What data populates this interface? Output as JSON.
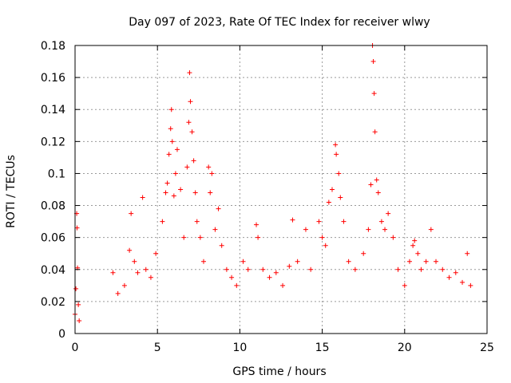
{
  "chart_data": {
    "type": "scatter",
    "title": "Day 097 of 2023, Rate Of TEC Index for receiver wlwy",
    "xlabel": "GPS time / hours",
    "ylabel": "ROTI / TECUs",
    "xlim": [
      0,
      25
    ],
    "ylim": [
      0,
      0.18
    ],
    "xticks": [
      "0",
      "5",
      "10",
      "15",
      "20",
      "25"
    ],
    "yticks": [
      "0",
      "0.02",
      "0.04",
      "0.06",
      "0.08",
      "0.1",
      "0.12",
      "0.14",
      "0.16",
      "0.18"
    ],
    "grid": true,
    "marker": "+",
    "series_color": "#ff0000",
    "series": [
      {
        "name": "ROTI",
        "points": [
          [
            0.0,
            0.012
          ],
          [
            0.05,
            0.028
          ],
          [
            0.1,
            0.075
          ],
          [
            0.12,
            0.066
          ],
          [
            0.15,
            0.041
          ],
          [
            0.2,
            0.018
          ],
          [
            0.25,
            0.008
          ],
          [
            2.3,
            0.038
          ],
          [
            2.6,
            0.025
          ],
          [
            3.0,
            0.03
          ],
          [
            3.3,
            0.052
          ],
          [
            3.4,
            0.075
          ],
          [
            3.6,
            0.045
          ],
          [
            3.8,
            0.038
          ],
          [
            4.1,
            0.085
          ],
          [
            4.3,
            0.04
          ],
          [
            4.6,
            0.035
          ],
          [
            4.9,
            0.05
          ],
          [
            5.3,
            0.07
          ],
          [
            5.5,
            0.088
          ],
          [
            5.6,
            0.094
          ],
          [
            5.7,
            0.112
          ],
          [
            5.8,
            0.128
          ],
          [
            5.85,
            0.14
          ],
          [
            5.9,
            0.12
          ],
          [
            6.0,
            0.086
          ],
          [
            6.1,
            0.1
          ],
          [
            6.2,
            0.115
          ],
          [
            6.4,
            0.09
          ],
          [
            6.6,
            0.06
          ],
          [
            6.8,
            0.104
          ],
          [
            6.9,
            0.132
          ],
          [
            6.95,
            0.163
          ],
          [
            7.0,
            0.145
          ],
          [
            7.1,
            0.126
          ],
          [
            7.2,
            0.108
          ],
          [
            7.3,
            0.088
          ],
          [
            7.4,
            0.07
          ],
          [
            7.6,
            0.06
          ],
          [
            7.8,
            0.045
          ],
          [
            8.1,
            0.104
          ],
          [
            8.2,
            0.088
          ],
          [
            8.3,
            0.1
          ],
          [
            8.5,
            0.065
          ],
          [
            8.7,
            0.078
          ],
          [
            8.9,
            0.055
          ],
          [
            9.2,
            0.04
          ],
          [
            9.5,
            0.035
          ],
          [
            9.8,
            0.03
          ],
          [
            10.2,
            0.045
          ],
          [
            10.5,
            0.04
          ],
          [
            11.0,
            0.068
          ],
          [
            11.1,
            0.06
          ],
          [
            11.4,
            0.04
          ],
          [
            11.8,
            0.035
          ],
          [
            12.2,
            0.038
          ],
          [
            12.6,
            0.03
          ],
          [
            13.0,
            0.042
          ],
          [
            13.2,
            0.071
          ],
          [
            13.5,
            0.045
          ],
          [
            14.0,
            0.065
          ],
          [
            14.3,
            0.04
          ],
          [
            14.8,
            0.07
          ],
          [
            15.0,
            0.06
          ],
          [
            15.2,
            0.055
          ],
          [
            15.4,
            0.082
          ],
          [
            15.6,
            0.09
          ],
          [
            15.8,
            0.118
          ],
          [
            15.85,
            0.112
          ],
          [
            16.0,
            0.1
          ],
          [
            16.1,
            0.085
          ],
          [
            16.3,
            0.07
          ],
          [
            16.6,
            0.045
          ],
          [
            17.0,
            0.04
          ],
          [
            17.5,
            0.05
          ],
          [
            17.8,
            0.065
          ],
          [
            17.95,
            0.093
          ],
          [
            18.05,
            0.18
          ],
          [
            18.1,
            0.17
          ],
          [
            18.15,
            0.15
          ],
          [
            18.2,
            0.126
          ],
          [
            18.3,
            0.096
          ],
          [
            18.4,
            0.088
          ],
          [
            18.6,
            0.07
          ],
          [
            18.8,
            0.065
          ],
          [
            19.0,
            0.075
          ],
          [
            19.3,
            0.06
          ],
          [
            19.6,
            0.04
          ],
          [
            20.0,
            0.03
          ],
          [
            20.3,
            0.045
          ],
          [
            20.5,
            0.055
          ],
          [
            20.6,
            0.058
          ],
          [
            20.8,
            0.05
          ],
          [
            21.0,
            0.04
          ],
          [
            21.3,
            0.045
          ],
          [
            21.6,
            0.065
          ],
          [
            21.9,
            0.045
          ],
          [
            22.3,
            0.04
          ],
          [
            22.7,
            0.035
          ],
          [
            23.1,
            0.038
          ],
          [
            23.5,
            0.032
          ],
          [
            23.8,
            0.05
          ],
          [
            24.0,
            0.03
          ]
        ]
      }
    ]
  }
}
